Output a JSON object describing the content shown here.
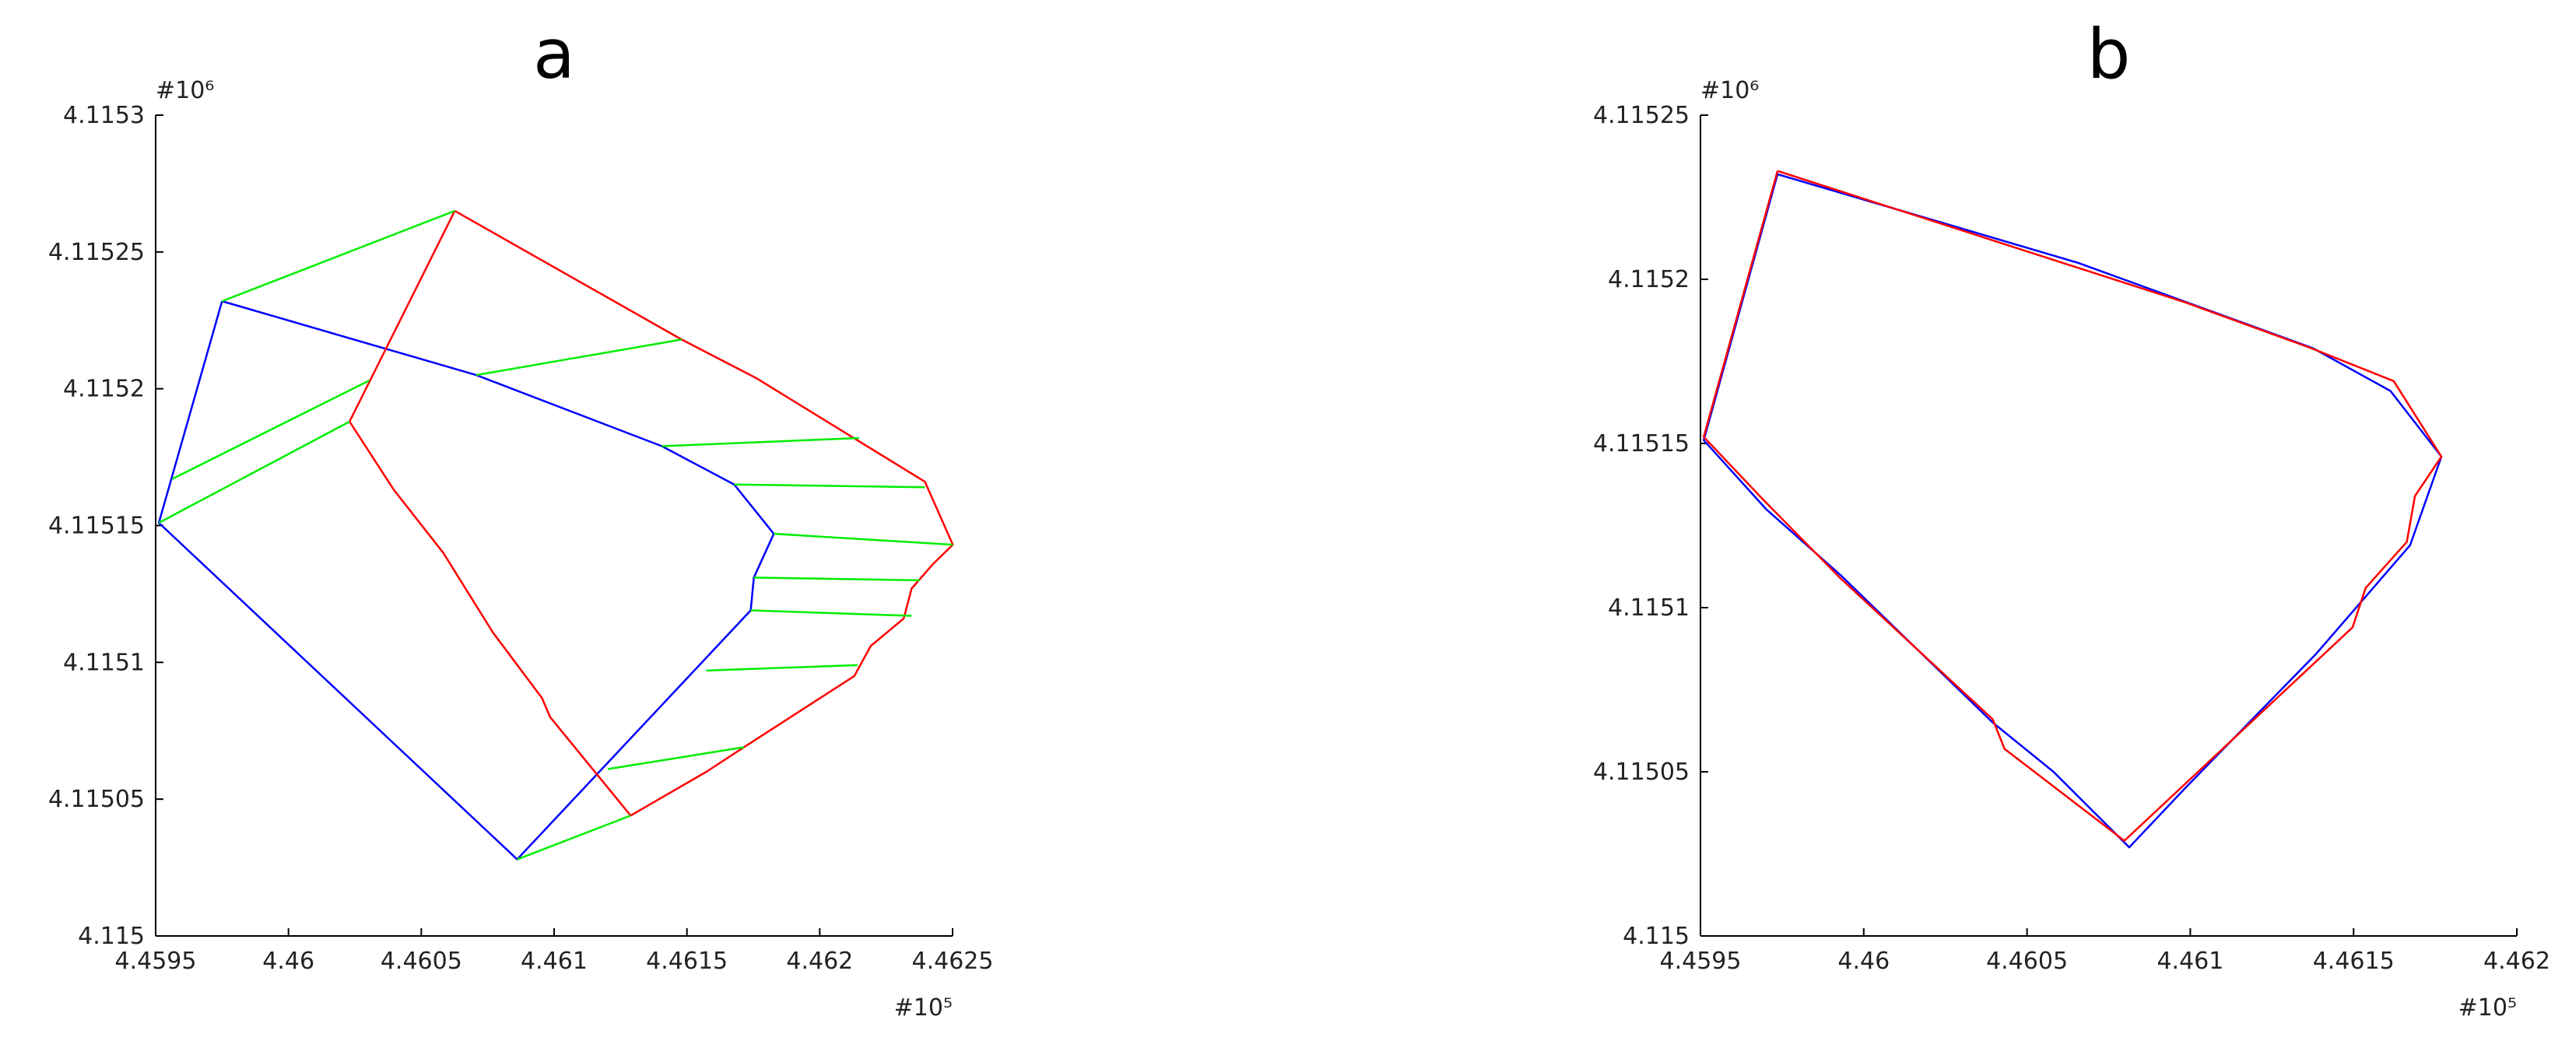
{
  "chart_data": [
    {
      "type": "line",
      "title": "a",
      "x_multiplier": "#10⁵",
      "y_multiplier": "#10⁶",
      "xlim": [
        4.4595,
        4.4625
      ],
      "xticks": [
        4.4595,
        4.46,
        4.4605,
        4.461,
        4.4615,
        4.462,
        4.4625
      ],
      "ylim": [
        4.115,
        4.1153
      ],
      "yticks": [
        4.115,
        4.11505,
        4.1151,
        4.11515,
        4.1152,
        4.11525,
        4.1153
      ],
      "series": [
        {
          "color": "#0000ff",
          "x": [
            4.45975,
            4.459512,
            4.460861,
            4.46174,
            4.461752,
            4.461827,
            4.461678,
            4.461406,
            4.460707,
            4.45975
          ],
          "values": [
            4.115232,
            4.115151,
            4.115028,
            4.115119,
            4.115131,
            4.115147,
            4.115165,
            4.115179,
            4.115205,
            4.115232
          ]
        },
        {
          "color": "#ff0000",
          "x": [
            4.460626,
            4.46023,
            4.460397,
            4.460583,
            4.460769,
            4.460954,
            4.460985,
            4.461288,
            4.461573,
            4.461715,
            4.46213,
            4.462192,
            4.462316,
            4.462346,
            4.462427,
            4.462501,
            4.462396,
            4.461759,
            4.46148,
            4.460626
          ],
          "values": [
            4.115265,
            4.115188,
            4.115163,
            4.11514,
            4.115111,
            4.115087,
            4.11508,
            4.115044,
            4.11506,
            4.115069,
            4.115095,
            4.115106,
            4.115116,
            4.115127,
            4.115136,
            4.115143,
            4.115166,
            4.115204,
            4.115218,
            4.115265
          ]
        },
        {
          "color": "#00ee00",
          "x": [
            4.45975,
            4.460626,
            null,
            4.459562,
            4.460304,
            null,
            4.459512,
            4.46023,
            null,
            4.460707,
            4.46148,
            null,
            4.461406,
            4.462148,
            null,
            4.461678,
            4.462396,
            null,
            4.461827,
            4.462501,
            null,
            4.461752,
            4.462377,
            null,
            4.46174,
            4.462346,
            null,
            4.461573,
            4.462142,
            null,
            4.461202,
            4.461715,
            null,
            4.460861,
            4.461288
          ],
          "values": [
            4.115232,
            4.115265,
            null,
            4.115167,
            4.115203,
            null,
            4.115151,
            4.115188,
            null,
            4.115205,
            4.115218,
            null,
            4.115179,
            4.115182,
            null,
            4.115165,
            4.115164,
            null,
            4.115147,
            4.115143,
            null,
            4.115131,
            4.11513,
            null,
            4.115119,
            4.115117,
            null,
            4.115097,
            4.115099,
            null,
            4.115061,
            4.115069,
            null,
            4.115028,
            4.115044
          ]
        }
      ]
    },
    {
      "type": "line",
      "title": "b",
      "x_multiplier": "#10⁵",
      "y_multiplier": "#10⁶",
      "xlim": [
        4.4595,
        4.462
      ],
      "xticks": [
        4.4595,
        4.46,
        4.4605,
        4.461,
        4.4615,
        4.462
      ],
      "ylim": [
        4.115,
        4.11525
      ],
      "yticks": [
        4.115,
        4.11505,
        4.1151,
        4.11515,
        4.1152,
        4.11525
      ],
      "series": [
        {
          "color": "#0000ff",
          "x": [
            4.459736,
            4.45951,
            4.459701,
            4.459928,
            4.460395,
            4.460581,
            4.460813,
            4.460984,
            4.461386,
            4.461673,
            4.461769,
            4.461613,
            4.461376,
            4.460657,
            4.459736
          ],
          "values": [
            4.115232,
            4.115151,
            4.11513,
            4.11511,
            4.115065,
            4.11505,
            4.115027,
            4.115045,
            4.115086,
            4.115119,
            4.115146,
            4.115166,
            4.115179,
            4.115205,
            4.115232
          ]
        },
        {
          "color": "#ff0000",
          "x": [
            4.459736,
            4.45951,
            4.459691,
            4.459928,
            4.460395,
            4.460431,
            4.460798,
            4.461497,
            4.461537,
            4.461663,
            4.461688,
            4.461769,
            4.461623,
            4.461371,
            4.460984,
            4.459736
          ],
          "values": [
            4.115233,
            4.115152,
            4.115133,
            4.115109,
            4.115066,
            4.115057,
            4.115029,
            4.115094,
            4.115106,
            4.11512,
            4.115134,
            4.115146,
            4.115169,
            4.115179,
            4.115193,
            4.115233
          ]
        }
      ]
    }
  ]
}
